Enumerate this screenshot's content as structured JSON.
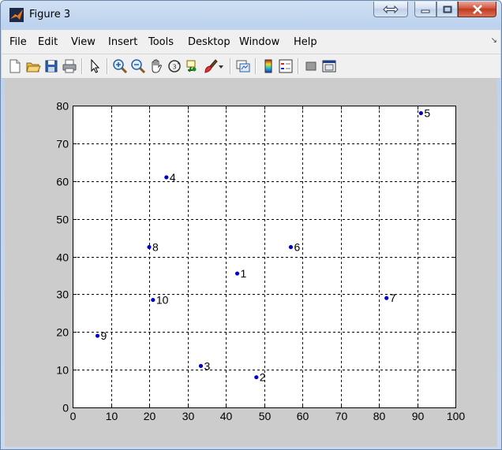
{
  "window": {
    "title": "Figure 3",
    "buttons": [
      "swap-view",
      "minimize",
      "maximize",
      "close"
    ]
  },
  "menu": {
    "items": [
      "File",
      "Edit",
      "View",
      "Insert",
      "Tools",
      "Desktop",
      "Window",
      "Help"
    ]
  },
  "toolbar": {
    "icons": [
      "new-figure-icon",
      "open-file-icon",
      "save-icon",
      "print-icon",
      "select-arrow-icon",
      "zoom-in-icon",
      "zoom-out-icon",
      "pan-hand-icon",
      "rotate-3d-icon",
      "data-cursor-icon",
      "brush-icon",
      "brush-dropdown-icon",
      "link-plot-icon",
      "colorbar-icon",
      "legend-icon",
      "hide-plot-tools-icon",
      "show-plot-tools-icon"
    ]
  },
  "colors": {
    "marker": "#0000cc",
    "axes_bg": "#ffffff",
    "figure_bg": "#cccccc",
    "grid": "#000000"
  },
  "chart_data": {
    "type": "scatter",
    "title": "",
    "xlabel": "",
    "ylabel": "",
    "xlim": [
      0,
      100
    ],
    "ylim": [
      0,
      80
    ],
    "xticks": [
      0,
      10,
      20,
      30,
      40,
      50,
      60,
      70,
      80,
      90,
      100
    ],
    "yticks": [
      0,
      10,
      20,
      30,
      40,
      50,
      60,
      70,
      80
    ],
    "grid": true,
    "grid_style": "dashed",
    "marker": "dot",
    "points": [
      {
        "label": "1",
        "x": 43,
        "y": 35.5
      },
      {
        "label": "2",
        "x": 48,
        "y": 8
      },
      {
        "label": "3",
        "x": 33.5,
        "y": 11
      },
      {
        "label": "4",
        "x": 24.5,
        "y": 61
      },
      {
        "label": "5",
        "x": 91,
        "y": 78
      },
      {
        "label": "6",
        "x": 57,
        "y": 42.5
      },
      {
        "label": "7",
        "x": 82,
        "y": 29
      },
      {
        "label": "8",
        "x": 20,
        "y": 42.5
      },
      {
        "label": "9",
        "x": 6.5,
        "y": 19
      },
      {
        "label": "10",
        "x": 21,
        "y": 28.5
      }
    ]
  }
}
